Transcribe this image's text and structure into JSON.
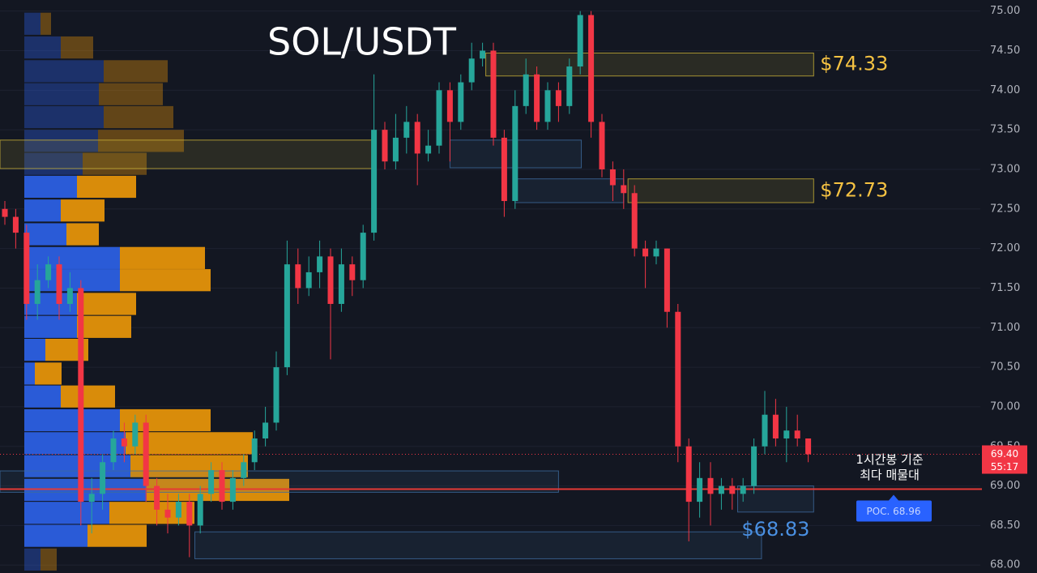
{
  "chart_data": {
    "type": "candlestick",
    "title": "SOL/USDT",
    "ylim": [
      67.9,
      75.14
    ],
    "yticks": [
      {
        "value": 68,
        "label": "68.00"
      },
      {
        "value": 68.5,
        "label": "68.50"
      },
      {
        "value": 69,
        "label": "69.00"
      },
      {
        "value": 69.5,
        "label": "69.50"
      },
      {
        "value": 70,
        "label": "70.00"
      },
      {
        "value": 70.5,
        "label": "70.50"
      },
      {
        "value": 71,
        "label": "71.00"
      },
      {
        "value": 71.5,
        "label": "71.50"
      },
      {
        "value": 72,
        "label": "72.00"
      },
      {
        "value": 72.5,
        "label": "72.50"
      },
      {
        "value": 73,
        "label": "73.00"
      },
      {
        "value": 73.5,
        "label": "73.50"
      },
      {
        "value": 74,
        "label": "74.00"
      },
      {
        "value": 74.5,
        "label": "74.50"
      },
      {
        "value": 75,
        "label": "75.00"
      }
    ],
    "grid": true,
    "up_color": "#26a69a",
    "down_color": "#f23645",
    "candles": {
      "open": [
        72.5,
        72.4,
        72.2,
        71.3,
        71.6,
        71.8,
        71.3,
        71.5,
        68.8,
        68.9,
        69.3,
        69.6,
        69.5,
        69.8,
        69.0,
        68.7,
        68.6,
        68.8,
        68.5,
        68.9,
        69.2,
        68.8,
        69.1,
        69.3,
        69.6,
        69.8,
        70.5,
        71.8,
        71.5,
        71.7,
        71.9,
        71.3,
        71.8,
        71.6,
        72.2,
        73.5,
        73.1,
        73.4,
        73.6,
        73.2,
        73.3,
        74.0,
        73.6,
        74.1,
        74.4,
        74.5,
        73.4,
        72.6,
        73.8,
        74.2,
        73.6,
        74.0,
        73.8,
        74.3,
        74.95,
        73.6,
        73.0,
        72.8,
        72.7,
        72.0,
        71.9,
        72.0,
        71.2,
        69.5,
        68.8,
        69.1,
        68.9,
        69.0,
        68.9,
        69.0,
        69.5,
        69.9,
        69.6,
        69.7,
        69.6
      ],
      "high": [
        72.6,
        72.5,
        72.3,
        71.8,
        71.9,
        71.9,
        71.7,
        71.6,
        69.1,
        69.4,
        69.7,
        69.8,
        69.9,
        69.9,
        69.1,
        68.9,
        68.9,
        68.9,
        69.0,
        69.3,
        69.3,
        69.2,
        69.4,
        69.7,
        70.0,
        70.7,
        72.1,
        72.0,
        71.9,
        72.1,
        72.0,
        72.0,
        71.9,
        72.3,
        74.2,
        73.6,
        73.7,
        73.8,
        73.7,
        73.5,
        74.1,
        74.1,
        74.2,
        74.6,
        74.6,
        74.6,
        73.5,
        74.0,
        74.4,
        74.3,
        74.1,
        74.1,
        74.4,
        75.0,
        75.0,
        73.7,
        73.1,
        73.0,
        72.8,
        72.1,
        72.1,
        72.0,
        71.3,
        69.6,
        69.3,
        69.3,
        69.1,
        69.1,
        69.1,
        69.6,
        70.2,
        70.1,
        70.0,
        69.9,
        69.5
      ],
      "low": [
        72.3,
        72.0,
        71.1,
        71.1,
        71.5,
        71.1,
        71.2,
        68.5,
        68.4,
        68.7,
        69.2,
        69.3,
        69.4,
        68.8,
        68.5,
        68.4,
        68.5,
        68.1,
        68.4,
        68.8,
        68.7,
        68.7,
        69.0,
        69.2,
        69.5,
        69.7,
        70.4,
        71.3,
        71.4,
        71.5,
        70.6,
        71.2,
        71.4,
        71.5,
        72.1,
        73.0,
        73.0,
        73.2,
        72.8,
        73.1,
        73.2,
        73.1,
        73.5,
        74.0,
        74.3,
        73.3,
        72.4,
        72.5,
        73.7,
        73.5,
        73.5,
        73.6,
        73.7,
        74.2,
        73.4,
        72.9,
        72.6,
        72.5,
        71.9,
        71.5,
        71.8,
        71.0,
        69.3,
        68.3,
        68.6,
        68.5,
        68.7,
        68.7,
        68.8,
        68.9,
        69.4,
        69.5,
        69.3,
        69.5,
        69.3
      ],
      "close": [
        72.4,
        72.2,
        71.3,
        71.6,
        71.8,
        71.3,
        71.5,
        68.8,
        68.9,
        69.3,
        69.6,
        69.5,
        69.8,
        69.0,
        68.7,
        68.6,
        68.8,
        68.5,
        68.9,
        69.2,
        68.8,
        69.1,
        69.3,
        69.6,
        69.8,
        70.5,
        71.8,
        71.5,
        71.7,
        71.9,
        71.3,
        71.8,
        71.6,
        72.2,
        73.5,
        73.1,
        73.4,
        73.6,
        73.2,
        73.3,
        74.0,
        73.6,
        74.1,
        74.4,
        74.5,
        73.4,
        72.6,
        73.8,
        74.2,
        73.6,
        74.0,
        73.8,
        74.3,
        74.95,
        73.6,
        73.0,
        72.8,
        72.7,
        72.0,
        71.9,
        72.0,
        71.2,
        69.5,
        68.8,
        69.1,
        68.9,
        69.0,
        68.9,
        69.0,
        69.5,
        69.9,
        69.6,
        69.7,
        69.6,
        69.4
      ]
    },
    "volume_profile": {
      "prices": [
        74.84,
        74.54,
        74.24,
        73.95,
        73.66,
        73.36,
        73.07,
        72.78,
        72.48,
        72.18,
        71.88,
        71.6,
        71.3,
        71.01,
        70.72,
        70.42,
        70.13,
        69.83,
        69.54,
        69.25,
        68.95,
        68.66,
        68.37,
        68.07
      ],
      "buy": [
        20,
        45,
        98,
        92,
        98,
        91,
        72,
        65,
        45,
        52,
        118,
        118,
        65,
        65,
        26,
        13,
        45,
        118,
        125,
        131,
        151,
        105,
        78,
        20
      ],
      "sell": [
        13,
        40,
        79,
        79,
        86,
        106,
        79,
        73,
        54,
        40,
        105,
        112,
        73,
        67,
        53,
        33,
        67,
        112,
        157,
        145,
        176,
        105,
        73,
        20
      ],
      "buy_color": "#2a5bd7",
      "sell_color": "#d98c0a",
      "value_area": [
        68.2,
        73.0
      ]
    },
    "zones": [
      {
        "start": -0.5,
        "end": 34,
        "low": 73.01,
        "high": 73.37,
        "color": "#c9b037"
      },
      {
        "start": 44.3,
        "end": 74.5,
        "low": 74.18,
        "high": 74.47,
        "color": "#c9b037",
        "label": "$74.33",
        "label_color": "#f5c242",
        "label_position": "right"
      },
      {
        "start": 57.4,
        "end": 74.5,
        "low": 72.58,
        "high": 72.88,
        "color": "#c9b037",
        "label": "$72.73",
        "label_color": "#f5c242",
        "label_position": "right"
      },
      {
        "start": 41,
        "end": 53.1,
        "low": 73.02,
        "high": 73.37,
        "color": "#3d6a9e"
      },
      {
        "start": 47,
        "end": 57,
        "low": 72.58,
        "high": 72.88,
        "color": "#3d6a9e"
      },
      {
        "start": -0.5,
        "end": 51,
        "low": 68.92,
        "high": 69.19,
        "color": "#3d6a9e"
      },
      {
        "start": 17.5,
        "end": 69.7,
        "low": 68.08,
        "high": 68.42,
        "color": "#3d6a9e"
      },
      {
        "start": 67.5,
        "end": 74.5,
        "low": 68.67,
        "high": 69.0,
        "color": "#3d6a9e",
        "label": "$68.83",
        "label_color": "#4a90e2",
        "label_position": "below"
      }
    ],
    "poc": {
      "value": 68.96,
      "label": "POC. 68.96",
      "color": "#e53935",
      "note": [
        "1시간봉 기준",
        "최다 매물대"
      ]
    },
    "last_price": {
      "value": 69.4,
      "label": "69.40",
      "countdown": "55:17"
    }
  }
}
